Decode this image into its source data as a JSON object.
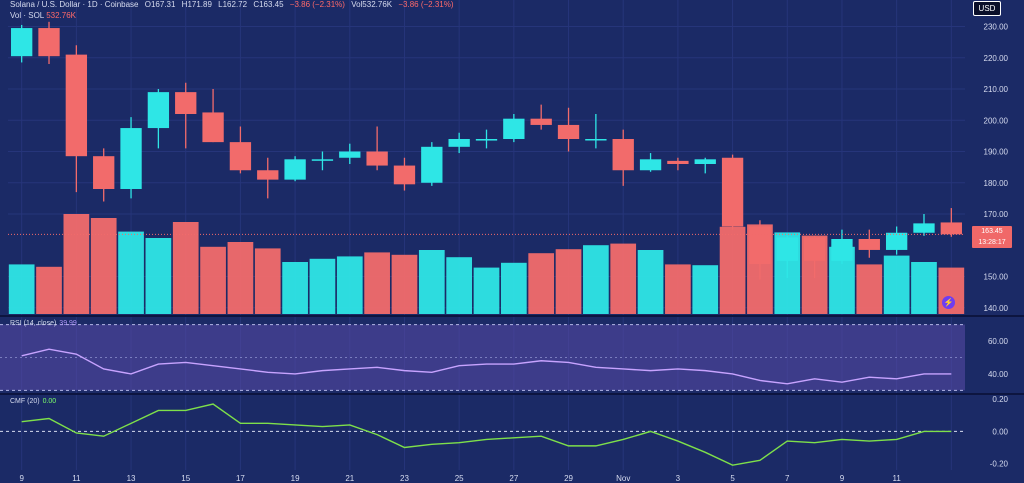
{
  "header": {
    "symbol": "Solana / U.S. Dollar · 1D · Coinbase",
    "open": "O167.31",
    "high": "H171.89",
    "low": "L162.72",
    "close": "C163.45",
    "change": "−3.86 (−2.31%)",
    "vol": "Vol532.76K",
    "vol_change": "−3.86 (−2.31%)",
    "vol_label": "Vol · SOL",
    "vol_value": "532.76K"
  },
  "currency": "USD",
  "last_price": {
    "price": "163.45",
    "countdown": "13:28:17"
  },
  "rsi_label": {
    "name": "RSI (14, close)",
    "value": "39.99"
  },
  "cmf_label": {
    "name": "CMF (20)",
    "value": "0.00"
  },
  "colors": {
    "up": "#2ee6e6",
    "down": "#f26b6b",
    "rsi": "#c7a3ff",
    "cmf": "#7ee04a",
    "bg": "#1b2a66"
  },
  "chart_data": [
    {
      "type": "candlestick",
      "price_ticks": [
        "230.00",
        "220.00",
        "210.00",
        "200.00",
        "190.00",
        "180.00",
        "170.00",
        "150.00",
        "140.00"
      ],
      "price_tick_values": [
        230,
        220,
        210,
        200,
        190,
        180,
        170,
        150,
        140
      ],
      "ylim": [
        138,
        234
      ],
      "x_labels": [
        "9",
        "11",
        "13",
        "15",
        "17",
        "19",
        "21",
        "23",
        "25",
        "27",
        "29",
        "Nov",
        "3",
        "5",
        "7",
        "9",
        "11"
      ],
      "candles": [
        {
          "o": 220.5,
          "h": 230.5,
          "l": 218.5,
          "c": 229.5
        },
        {
          "o": 229.5,
          "h": 231.5,
          "l": 218,
          "c": 220.5
        },
        {
          "o": 221,
          "h": 224,
          "l": 177,
          "c": 188.5
        },
        {
          "o": 188.5,
          "h": 191,
          "l": 174,
          "c": 178
        },
        {
          "o": 178,
          "h": 201,
          "l": 175,
          "c": 197.5
        },
        {
          "o": 197.5,
          "h": 210,
          "l": 191,
          "c": 209
        },
        {
          "o": 209,
          "h": 212,
          "l": 191,
          "c": 202
        },
        {
          "o": 202.5,
          "h": 210,
          "l": 193,
          "c": 193
        },
        {
          "o": 193,
          "h": 198,
          "l": 183,
          "c": 184
        },
        {
          "o": 184,
          "h": 188,
          "l": 175,
          "c": 181
        },
        {
          "o": 181,
          "h": 188.5,
          "l": 180.5,
          "c": 187.5
        },
        {
          "o": 187.5,
          "h": 190,
          "l": 184,
          "c": 187.5
        },
        {
          "o": 188,
          "h": 192.5,
          "l": 186,
          "c": 190
        },
        {
          "o": 190,
          "h": 198,
          "l": 184,
          "c": 185.5
        },
        {
          "o": 185.5,
          "h": 188,
          "l": 177.5,
          "c": 179.5
        },
        {
          "o": 180,
          "h": 193,
          "l": 179,
          "c": 191.5
        },
        {
          "o": 191.5,
          "h": 196,
          "l": 189.5,
          "c": 194
        },
        {
          "o": 193.5,
          "h": 197,
          "l": 191,
          "c": 194
        },
        {
          "o": 194,
          "h": 202,
          "l": 193,
          "c": 200.5
        },
        {
          "o": 200.5,
          "h": 205,
          "l": 197,
          "c": 198.5
        },
        {
          "o": 198.5,
          "h": 204,
          "l": 190,
          "c": 194
        },
        {
          "o": 194,
          "h": 202,
          "l": 191,
          "c": 194
        },
        {
          "o": 194,
          "h": 197,
          "l": 179,
          "c": 184
        },
        {
          "o": 184,
          "h": 189.5,
          "l": 183.5,
          "c": 187.5
        },
        {
          "o": 187,
          "h": 188,
          "l": 184,
          "c": 186
        },
        {
          "o": 186,
          "h": 188,
          "l": 183,
          "c": 187.5
        },
        {
          "o": 188,
          "h": 189,
          "l": 165,
          "c": 166
        },
        {
          "o": 166,
          "h": 168,
          "l": 149,
          "c": 154
        },
        {
          "o": 155,
          "h": 163,
          "l": 149.5,
          "c": 162.5
        },
        {
          "o": 162.5,
          "h": 163,
          "l": 149.5,
          "c": 155
        },
        {
          "o": 155,
          "h": 165,
          "l": 154,
          "c": 162
        },
        {
          "o": 162,
          "h": 165,
          "l": 156,
          "c": 158.5
        },
        {
          "o": 158.5,
          "h": 166,
          "l": 157,
          "c": 164
        },
        {
          "o": 164,
          "h": 170,
          "l": 163,
          "c": 167
        },
        {
          "o": 167.3,
          "h": 171.9,
          "l": 162.7,
          "c": 163.5
        }
      ],
      "volume": [
        6.2,
        5.9,
        12.5,
        12.0,
        10.3,
        9.5,
        11.5,
        8.4,
        9.0,
        8.2,
        6.5,
        6.9,
        7.2,
        7.7,
        7.4,
        8.0,
        7.1,
        5.8,
        6.4,
        7.6,
        8.1,
        8.6,
        8.8,
        8.0,
        6.2,
        6.1,
        10.9,
        11.2,
        10.2,
        9.8,
        8.4,
        6.2,
        7.3,
        6.5,
        5.8
      ]
    },
    {
      "type": "line",
      "title": "RSI (14, close)",
      "ticks": [
        "60.00",
        "40.00"
      ],
      "tick_values": [
        60,
        40
      ],
      "ylim": [
        29,
        74
      ],
      "bands": [
        70,
        30
      ],
      "values": [
        51,
        55,
        52,
        43,
        40,
        46,
        47,
        45,
        43,
        41,
        40,
        42,
        43,
        44,
        42,
        41,
        45,
        46,
        46,
        48,
        47,
        44,
        43,
        42,
        43,
        42,
        40,
        36,
        34,
        37,
        35,
        38,
        37,
        40,
        39.99
      ]
    },
    {
      "type": "line",
      "title": "CMF (20)",
      "ticks": [
        "0.20",
        "0.00",
        "-0.20"
      ],
      "tick_values": [
        0.2,
        0.0,
        -0.2
      ],
      "ylim": [
        -0.24,
        0.22
      ],
      "values": [
        0.06,
        0.08,
        -0.01,
        -0.03,
        0.05,
        0.13,
        0.13,
        0.17,
        0.05,
        0.05,
        0.04,
        0.03,
        0.04,
        -0.02,
        -0.1,
        -0.08,
        -0.07,
        -0.05,
        -0.04,
        -0.03,
        -0.09,
        -0.09,
        -0.05,
        0.0,
        -0.06,
        -0.13,
        -0.21,
        -0.18,
        -0.06,
        -0.07,
        -0.05,
        -0.06,
        -0.05,
        0.0,
        0.0
      ]
    }
  ]
}
